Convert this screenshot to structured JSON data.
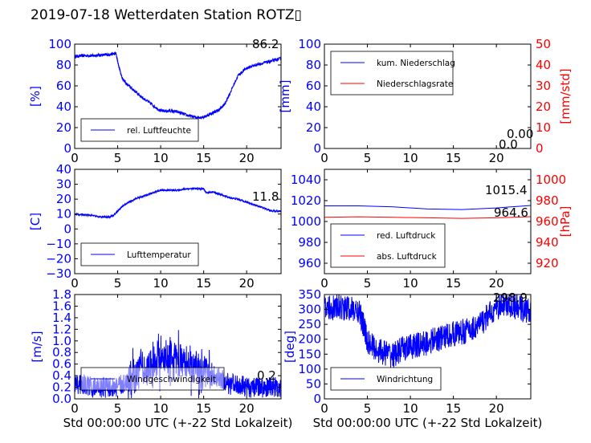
{
  "figure": {
    "title": "2019-07-18 Wetterdaten Station ROTZ▯"
  },
  "chart_data": [
    {
      "id": "humidity",
      "type": "line",
      "ylabel": "[%]",
      "ylim": [
        0,
        100
      ],
      "yticks": [
        "0",
        "20",
        "40",
        "60",
        "80",
        "100"
      ],
      "xlim": [
        0,
        24
      ],
      "xticks": [
        "0",
        "5",
        "10",
        "15",
        "20"
      ],
      "series": [
        {
          "name": "rel. Luftfeuchte",
          "color": "#0000ff",
          "noise": 1.5,
          "x": [
            0,
            1,
            2,
            3,
            4,
            4.8,
            5.1,
            5.5,
            6,
            7,
            8,
            9,
            10,
            11,
            12,
            13,
            14,
            15,
            16,
            16.8,
            17.5,
            18,
            19,
            20,
            21,
            22,
            23,
            24
          ],
          "y": [
            88,
            89,
            89,
            89.5,
            90,
            91,
            80,
            68,
            62,
            55,
            48,
            42,
            36,
            36,
            35,
            32,
            30,
            30,
            34,
            37,
            43,
            52,
            70,
            77,
            80,
            82,
            84,
            86.2
          ]
        }
      ],
      "value_label": "86.2"
    },
    {
      "id": "precip",
      "type": "line",
      "ylabel": "[mm]",
      "ylim": [
        0,
        100
      ],
      "yticks": [
        "0",
        "20",
        "40",
        "60",
        "80",
        "100"
      ],
      "y2label": "[mm/std]",
      "y2lim": [
        0,
        50
      ],
      "y2ticks": [
        "0",
        "10",
        "20",
        "30",
        "40",
        "50"
      ],
      "xlim": [
        0,
        24
      ],
      "xticks": [
        "0",
        "5",
        "10",
        "15",
        "20"
      ],
      "series": [
        {
          "name": "kum. Niederschlag",
          "color": "#0000ff",
          "axis": "left",
          "noise": 0,
          "x": [
            0,
            24
          ],
          "y": [
            0,
            0
          ]
        },
        {
          "name": "Niederschlagsrate",
          "color": "#ff0000",
          "axis": "right",
          "noise": 0,
          "x": [
            0,
            24
          ],
          "y": [
            0,
            0
          ]
        }
      ],
      "value_label": "0.00",
      "value_label_b": "0.0"
    },
    {
      "id": "temperature",
      "type": "line",
      "ylabel": "[C]",
      "ylim": [
        -30,
        40
      ],
      "yticks": [
        "−30",
        "−20",
        "−10",
        "0",
        "10",
        "20",
        "30",
        "40"
      ],
      "xlim": [
        0,
        24
      ],
      "xticks": [
        "0",
        "5",
        "10",
        "15",
        "20"
      ],
      "series": [
        {
          "name": "Lufttemperatur",
          "color": "#0000ff",
          "noise": 0.6,
          "x": [
            0,
            1,
            2,
            3,
            4,
            4.5,
            5,
            5.5,
            6,
            7,
            8,
            9,
            10,
            11,
            12,
            13,
            14,
            15,
            15.3,
            16,
            17,
            18,
            19,
            20,
            21,
            22,
            23,
            24
          ],
          "y": [
            10,
            9.5,
            9,
            8,
            8,
            9,
            12,
            15,
            17,
            20,
            22,
            24,
            26,
            26,
            26,
            27,
            27,
            27,
            24,
            25,
            23,
            21,
            20,
            18,
            16,
            14,
            12,
            11.8
          ]
        }
      ],
      "value_label": "11.8"
    },
    {
      "id": "pressure",
      "type": "line",
      "ylim": [
        950,
        1050
      ],
      "yticks": [
        "960",
        "980",
        "1000",
        "1020",
        "1040"
      ],
      "y2label": "[hPa]",
      "y2lim": [
        910,
        1010
      ],
      "y2ticks": [
        "920",
        "940",
        "960",
        "980",
        "1000"
      ],
      "xlim": [
        0,
        24
      ],
      "xticks": [
        "0",
        "5",
        "10",
        "15",
        "20"
      ],
      "series": [
        {
          "name": "red. Luftdruck",
          "color": "#0000ff",
          "axis": "left",
          "noise": 0,
          "x": [
            0,
            4,
            8,
            12,
            16,
            20,
            24
          ],
          "y": [
            1015,
            1015,
            1014,
            1012,
            1011.5,
            1013,
            1015.4
          ]
        },
        {
          "name": "abs. Luftdruck",
          "color": "#ff0000",
          "axis": "right",
          "noise": 0,
          "x": [
            0,
            4,
            8,
            12,
            16,
            20,
            24
          ],
          "y": [
            964,
            964.5,
            964,
            963.5,
            963,
            963.5,
            964.6
          ]
        }
      ],
      "value_label": "1015.4",
      "value_label_b": "964.6"
    },
    {
      "id": "wind_speed",
      "type": "line",
      "ylabel": "[m/s]",
      "ylim": [
        0,
        1.8
      ],
      "yticks": [
        "0.0",
        "0.2",
        "0.4",
        "0.6",
        "0.8",
        "1.0",
        "1.2",
        "1.4",
        "1.6",
        "1.8"
      ],
      "xlim": [
        0,
        24
      ],
      "xticks": [
        "0",
        "5",
        "10",
        "15",
        "20"
      ],
      "xlabel": "Std 00:00:00 UTC (+-22 Std Lokalzeit)",
      "series": [
        {
          "name": "Windgeschwindigkeit",
          "color": "#0000ff",
          "noise": 0.18,
          "x": [
            0,
            1,
            2,
            3,
            4,
            5,
            6,
            7,
            8,
            9,
            10,
            11,
            12,
            13,
            14,
            15,
            16,
            17,
            18,
            19,
            20,
            21,
            22,
            23,
            24
          ],
          "y": [
            0.25,
            0.25,
            0.2,
            0.2,
            0.2,
            0.2,
            0.3,
            0.4,
            0.5,
            0.6,
            0.65,
            0.7,
            0.7,
            0.6,
            0.5,
            0.45,
            0.4,
            0.35,
            0.25,
            0.25,
            0.2,
            0.2,
            0.2,
            0.2,
            0.2
          ]
        }
      ],
      "value_label": "0.2"
    },
    {
      "id": "wind_dir",
      "type": "line",
      "ylabel": "[deg]",
      "ylim": [
        0,
        360
      ],
      "yticks": [
        "0",
        "50",
        "100",
        "150",
        "200",
        "250",
        "300",
        "350"
      ],
      "xlim": [
        0,
        24
      ],
      "xticks": [
        "0",
        "5",
        "10",
        "15",
        "20"
      ],
      "xlabel": "Std 00:00:00 UTC (+-22 Std Lokalzeit)",
      "series": [
        {
          "name": "Windrichtung",
          "color": "#0000ff",
          "noise": 45,
          "x": [
            0,
            1,
            2,
            3,
            4,
            4.5,
            5,
            6,
            7,
            8,
            9,
            10,
            11,
            12,
            13,
            14,
            15,
            16,
            17,
            18,
            19,
            20,
            21,
            22,
            23,
            24
          ],
          "y": [
            310,
            315,
            315,
            310,
            300,
            260,
            200,
            170,
            160,
            150,
            170,
            180,
            185,
            195,
            205,
            215,
            225,
            230,
            240,
            255,
            285,
            315,
            330,
            320,
            310,
            298.9
          ]
        }
      ],
      "value_label": "298.9"
    }
  ]
}
